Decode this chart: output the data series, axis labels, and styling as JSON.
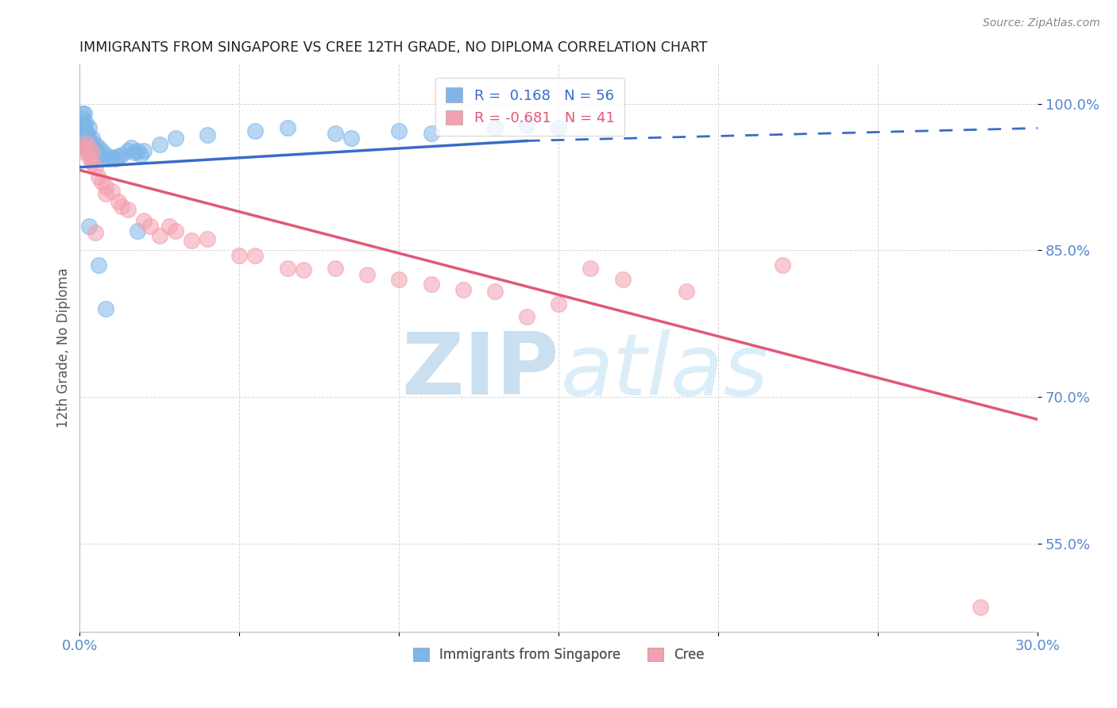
{
  "title": "IMMIGRANTS FROM SINGAPORE VS CREE 12TH GRADE, NO DIPLOMA CORRELATION CHART",
  "source": "Source: ZipAtlas.com",
  "ylabel": "12th Grade, No Diploma",
  "xlim": [
    0.0,
    0.3
  ],
  "ylim": [
    0.46,
    1.04
  ],
  "xticks": [
    0.0,
    0.05,
    0.1,
    0.15,
    0.2,
    0.25,
    0.3
  ],
  "xticklabels": [
    "0.0%",
    "",
    "",
    "",
    "",
    "",
    "30.0%"
  ],
  "yticks": [
    0.55,
    0.7,
    0.85,
    1.0
  ],
  "yticklabels": [
    "55.0%",
    "70.0%",
    "85.0%",
    "100.0%"
  ],
  "blue_color": "#7EB6E8",
  "pink_color": "#F4A0B0",
  "blue_line_color": "#3A6BC8",
  "pink_line_color": "#E05878",
  "R_blue": 0.168,
  "N_blue": 56,
  "R_pink": -0.681,
  "N_pink": 41,
  "blue_line_x0": 0.0,
  "blue_line_y0": 0.935,
  "blue_line_x1": 0.3,
  "blue_line_y1": 0.975,
  "blue_line_dashed_x0": 0.14,
  "blue_line_dashed_y0": 0.962,
  "blue_line_dashed_x1": 0.3,
  "blue_line_dashed_y1": 0.975,
  "pink_line_x0": 0.0,
  "pink_line_y0": 0.932,
  "pink_line_x1": 0.3,
  "pink_line_y1": 0.677,
  "grid_color": "#BBBBBB",
  "title_color": "#222222",
  "axis_label_color": "#555555",
  "tick_label_color": "#5588CC",
  "watermark_zip_color": "#C5DDEF",
  "watermark_atlas_color": "#D8ECF8",
  "blue_x": [
    0.0008,
    0.001,
    0.001,
    0.0012,
    0.0014,
    0.0015,
    0.0015,
    0.002,
    0.002,
    0.002,
    0.002,
    0.0025,
    0.003,
    0.003,
    0.003,
    0.003,
    0.0035,
    0.004,
    0.004,
    0.004,
    0.004,
    0.005,
    0.005,
    0.005,
    0.006,
    0.006,
    0.007,
    0.007,
    0.008,
    0.009,
    0.01,
    0.011,
    0.012,
    0.013,
    0.015,
    0.016,
    0.017,
    0.018,
    0.019,
    0.02,
    0.025,
    0.03,
    0.04,
    0.055,
    0.065,
    0.08,
    0.085,
    0.1,
    0.11,
    0.13,
    0.14,
    0.15,
    0.003,
    0.006,
    0.008,
    0.018
  ],
  "blue_y": [
    0.985,
    0.99,
    0.975,
    0.98,
    0.99,
    0.975,
    0.965,
    0.98,
    0.97,
    0.96,
    0.955,
    0.97,
    0.975,
    0.965,
    0.96,
    0.95,
    0.955,
    0.965,
    0.958,
    0.95,
    0.945,
    0.958,
    0.952,
    0.945,
    0.955,
    0.948,
    0.952,
    0.944,
    0.948,
    0.944,
    0.945,
    0.944,
    0.946,
    0.948,
    0.952,
    0.955,
    0.95,
    0.952,
    0.948,
    0.952,
    0.958,
    0.965,
    0.968,
    0.972,
    0.975,
    0.97,
    0.965,
    0.972,
    0.97,
    0.975,
    0.978,
    0.975,
    0.875,
    0.835,
    0.79,
    0.87
  ],
  "pink_x": [
    0.001,
    0.002,
    0.002,
    0.003,
    0.003,
    0.004,
    0.004,
    0.005,
    0.006,
    0.007,
    0.008,
    0.008,
    0.01,
    0.012,
    0.013,
    0.015,
    0.02,
    0.022,
    0.025,
    0.028,
    0.03,
    0.035,
    0.04,
    0.05,
    0.055,
    0.065,
    0.07,
    0.08,
    0.09,
    0.1,
    0.11,
    0.12,
    0.13,
    0.15,
    0.16,
    0.17,
    0.19,
    0.22,
    0.005,
    0.14,
    0.282
  ],
  "pink_y": [
    0.955,
    0.95,
    0.96,
    0.945,
    0.955,
    0.94,
    0.95,
    0.935,
    0.925,
    0.92,
    0.908,
    0.915,
    0.91,
    0.9,
    0.895,
    0.892,
    0.88,
    0.875,
    0.865,
    0.875,
    0.87,
    0.86,
    0.862,
    0.845,
    0.845,
    0.832,
    0.83,
    0.832,
    0.825,
    0.82,
    0.815,
    0.81,
    0.808,
    0.795,
    0.832,
    0.82,
    0.808,
    0.835,
    0.868,
    0.782,
    0.485
  ]
}
